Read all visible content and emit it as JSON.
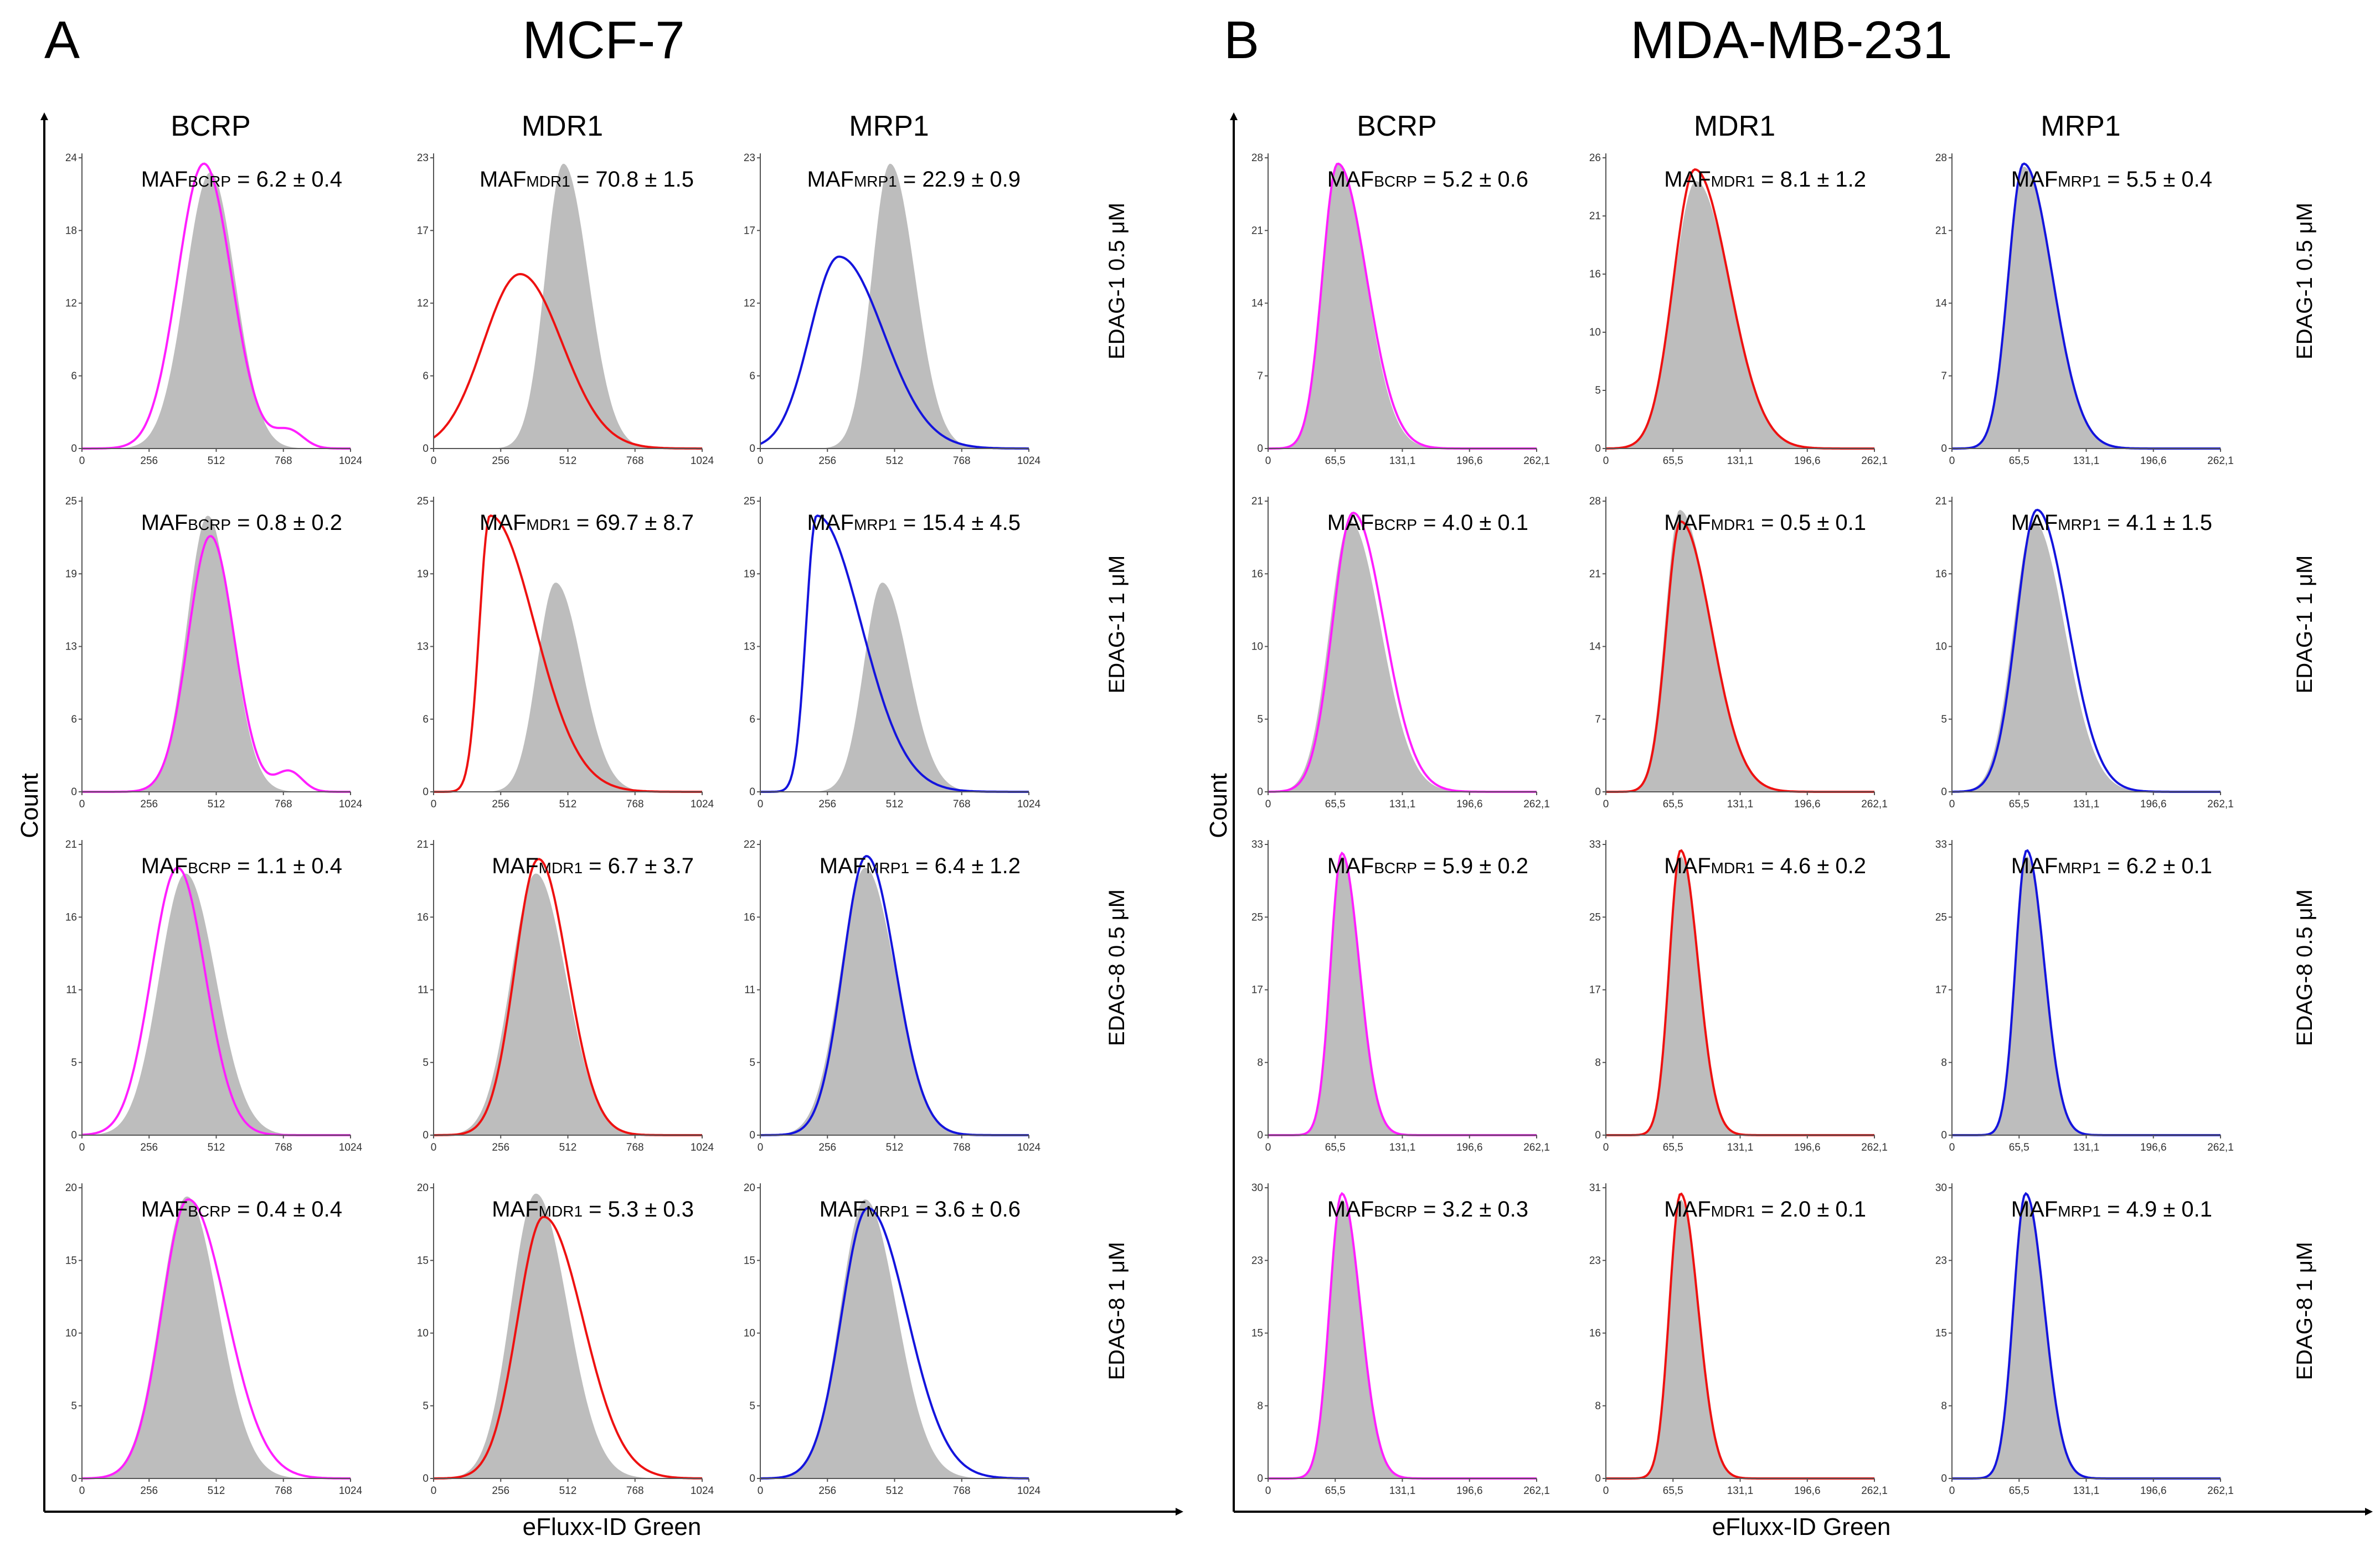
{
  "figure": {
    "series_colors": {
      "BCRP": "#ff1fff",
      "MDR1": "#ee1111",
      "MRP1": "#1414dd"
    },
    "fill_color": "#bdbdbd",
    "axis_color": "#000000",
    "count_label": "Count",
    "x_label": "eFluxx-ID Green",
    "maf_prefix": "MAF"
  },
  "chart_data": [
    {
      "type": "area",
      "panel": "A",
      "title": "MCF-7",
      "xlabel": "eFluxx-ID Green",
      "ylabel": "Count",
      "columns": [
        "BCRP",
        "MDR1",
        "MRP1"
      ],
      "rows": [
        "EDAG-1 0.5 μM",
        "EDAG-1 1 μM",
        "EDAG-8 0.5 μM",
        "EDAG-8 1 μM"
      ],
      "xlim": [
        0,
        1024
      ],
      "xticks": [
        "0",
        "256",
        "512",
        "768",
        "1024"
      ],
      "plots": [
        [
          {
            "ymax": 24,
            "yticks": [
              "0",
              "6",
              "12",
              "18",
              "24"
            ],
            "maf": "6.2 ± 0.4",
            "gray": {
              "peak": 490,
              "height": 0.95,
              "wl": 95,
              "wr": 95
            },
            "line": {
              "peak": 465,
              "height": 0.98,
              "wl": 100,
              "wr": 105,
              "tail": {
                "x": 790,
                "h": 0.06,
                "w": 55
              }
            }
          },
          {
            "ymax": 23,
            "yticks": [
              "0",
              "6",
              "12",
              "17",
              "23"
            ],
            "maf": "70.8 ± 1.5",
            "gray": {
              "peak": 495,
              "height": 0.98,
              "wl": 70,
              "wr": 95
            },
            "line": {
              "peak": 330,
              "height": 0.6,
              "wl": 140,
              "wr": 160
            }
          },
          {
            "ymax": 23,
            "yticks": [
              "0",
              "6",
              "12",
              "17",
              "23"
            ],
            "maf": "22.9 ± 0.9",
            "gray": {
              "peak": 495,
              "height": 0.98,
              "wl": 70,
              "wr": 95
            },
            "line": {
              "peak": 300,
              "height": 0.66,
              "wl": 110,
              "wr": 170
            }
          }
        ],
        [
          {
            "ymax": 25,
            "yticks": [
              "0",
              "6",
              "13",
              "19",
              "25"
            ],
            "maf": "0.8 ± 0.2",
            "gray": {
              "peak": 480,
              "height": 0.95,
              "wl": 80,
              "wr": 90
            },
            "line": {
              "peak": 490,
              "height": 0.88,
              "wl": 85,
              "wr": 90,
              "tail": {
                "x": 790,
                "h": 0.07,
                "w": 50
              }
            }
          },
          {
            "ymax": 25,
            "yticks": [
              "0",
              "6",
              "13",
              "19",
              "25"
            ],
            "maf": "69.7 ± 8.7",
            "gray": {
              "peak": 465,
              "height": 0.72,
              "wl": 70,
              "wr": 100
            },
            "line": {
              "peak": 215,
              "height": 0.95,
              "wl": 40,
              "wr": 170
            }
          },
          {
            "ymax": 25,
            "yticks": [
              "0",
              "6",
              "13",
              "19",
              "25"
            ],
            "maf": "15.4 ± 4.5",
            "gray": {
              "peak": 465,
              "height": 0.72,
              "wl": 70,
              "wr": 100
            },
            "line": {
              "peak": 215,
              "height": 0.95,
              "wl": 40,
              "wr": 170
            }
          }
        ],
        [
          {
            "ymax": 21,
            "yticks": [
              "0",
              "5",
              "11",
              "16",
              "21"
            ],
            "maf": "1.1 ± 0.4",
            "gray": {
              "peak": 395,
              "height": 0.9,
              "wl": 100,
              "wr": 115
            },
            "line": {
              "peak": 365,
              "height": 0.92,
              "wl": 100,
              "wr": 105
            }
          },
          {
            "ymax": 21,
            "yticks": [
              "0",
              "5",
              "11",
              "16",
              "21"
            ],
            "maf": "6.7 ± 3.7",
            "gray": {
              "peak": 390,
              "height": 0.9,
              "wl": 95,
              "wr": 115
            },
            "line": {
              "peak": 400,
              "height": 0.95,
              "wl": 90,
              "wr": 110
            }
          },
          {
            "ymax": 22,
            "yticks": [
              "0",
              "5",
              "11",
              "16",
              "22"
            ],
            "maf": "6.4 ± 1.2",
            "gray": {
              "peak": 400,
              "height": 0.92,
              "wl": 95,
              "wr": 115
            },
            "line": {
              "peak": 405,
              "height": 0.96,
              "wl": 90,
              "wr": 110
            }
          }
        ],
        [
          {
            "ymax": 20,
            "yticks": [
              "0",
              "5",
              "10",
              "15",
              "20"
            ],
            "maf": "0.4 ± 0.4",
            "gray": {
              "peak": 400,
              "height": 0.97,
              "wl": 100,
              "wr": 120
            },
            "line": {
              "peak": 405,
              "height": 0.96,
              "wl": 100,
              "wr": 145
            }
          },
          {
            "ymax": 20,
            "yticks": [
              "0",
              "5",
              "10",
              "15",
              "20"
            ],
            "maf": "5.3 ± 0.3",
            "gray": {
              "peak": 390,
              "height": 0.98,
              "wl": 95,
              "wr": 120
            },
            "line": {
              "peak": 420,
              "height": 0.9,
              "wl": 100,
              "wr": 150
            }
          },
          {
            "ymax": 20,
            "yticks": [
              "0",
              "5",
              "10",
              "15",
              "20"
            ],
            "maf": "3.6 ± 0.6",
            "gray": {
              "peak": 400,
              "height": 0.96,
              "wl": 95,
              "wr": 120
            },
            "line": {
              "peak": 410,
              "height": 0.93,
              "wl": 100,
              "wr": 150
            }
          }
        ]
      ]
    },
    {
      "type": "area",
      "panel": "B",
      "title": "MDA-MB-231",
      "xlabel": "eFluxx-ID Green",
      "ylabel": "Count",
      "columns": [
        "BCRP",
        "MDR1",
        "MRP1"
      ],
      "rows": [
        "EDAG-1 0.5 μM",
        "EDAG-1 1 μM",
        "EDAG-8 0.5 μM",
        "EDAG-8 1 μM"
      ],
      "xlim": [
        0,
        262.1
      ],
      "xticks": [
        "0",
        "65,5",
        "131,1",
        "196,6",
        "262,1"
      ],
      "plots": [
        [
          {
            "ymax": 28,
            "yticks": [
              "0",
              "7",
              "14",
              "21",
              "28"
            ],
            "maf": "5.2 ± 0.6",
            "gray": {
              "peak": 68,
              "height": 0.98,
              "wl": 15,
              "wr": 27
            },
            "line": {
              "peak": 68,
              "height": 0.98,
              "wl": 15,
              "wr": 28
            }
          },
          {
            "ymax": 26,
            "yticks": [
              "0",
              "5",
              "10",
              "16",
              "21",
              "26"
            ],
            "maf": "8.1 ± 1.2",
            "gray": {
              "peak": 88,
              "height": 0.92,
              "wl": 22,
              "wr": 33
            },
            "line": {
              "peak": 87,
              "height": 0.96,
              "wl": 21,
              "wr": 33
            }
          },
          {
            "ymax": 28,
            "yticks": [
              "0",
              "7",
              "14",
              "21",
              "28"
            ],
            "maf": "5.5 ± 0.4",
            "gray": {
              "peak": 70,
              "height": 0.97,
              "wl": 15,
              "wr": 28
            },
            "line": {
              "peak": 70,
              "height": 0.98,
              "wl": 15,
              "wr": 28
            }
          }
        ],
        [
          {
            "ymax": 21,
            "yticks": [
              "0",
              "5",
              "10",
              "16",
              "21"
            ],
            "maf": "4.0 ± 0.1",
            "gray": {
              "peak": 80,
              "height": 0.93,
              "wl": 20,
              "wr": 30
            },
            "line": {
              "peak": 83,
              "height": 0.96,
              "wl": 20,
              "wr": 30
            }
          },
          {
            "ymax": 28,
            "yticks": [
              "0",
              "7",
              "14",
              "21",
              "28"
            ],
            "maf": "0.5 ± 0.1",
            "gray": {
              "peak": 72,
              "height": 0.97,
              "wl": 14,
              "wr": 30
            },
            "line": {
              "peak": 73,
              "height": 0.93,
              "wl": 14,
              "wr": 30
            }
          },
          {
            "ymax": 21,
            "yticks": [
              "0",
              "5",
              "10",
              "16",
              "21"
            ],
            "maf": "4.1 ± 1.5",
            "gray": {
              "peak": 80,
              "height": 0.93,
              "wl": 20,
              "wr": 30
            },
            "line": {
              "peak": 83,
              "height": 0.97,
              "wl": 20,
              "wr": 30
            }
          }
        ],
        [
          {
            "ymax": 33,
            "yticks": [
              "0",
              "8",
              "17",
              "25",
              "33"
            ],
            "maf": "5.9 ± 0.2",
            "gray": {
              "peak": 72,
              "height": 0.96,
              "wl": 11,
              "wr": 17
            },
            "line": {
              "peak": 72,
              "height": 0.97,
              "wl": 11,
              "wr": 17
            }
          },
          {
            "ymax": 33,
            "yticks": [
              "0",
              "8",
              "17",
              "25",
              "33"
            ],
            "maf": "4.6 ± 0.2",
            "gray": {
              "peak": 73,
              "height": 0.96,
              "wl": 11,
              "wr": 17
            },
            "line": {
              "peak": 73,
              "height": 0.98,
              "wl": 11,
              "wr": 17
            }
          },
          {
            "ymax": 33,
            "yticks": [
              "0",
              "8",
              "17",
              "25",
              "33"
            ],
            "maf": "6.2 ± 0.1",
            "gray": {
              "peak": 73,
              "height": 0.96,
              "wl": 11,
              "wr": 17
            },
            "line": {
              "peak": 73,
              "height": 0.98,
              "wl": 11,
              "wr": 17
            }
          }
        ],
        [
          {
            "ymax": 30,
            "yticks": [
              "0",
              "8",
              "15",
              "23",
              "30"
            ],
            "maf": "3.2 ± 0.3",
            "gray": {
              "peak": 72,
              "height": 0.96,
              "wl": 12,
              "wr": 18
            },
            "line": {
              "peak": 72,
              "height": 0.98,
              "wl": 12,
              "wr": 18
            }
          },
          {
            "ymax": 31,
            "yticks": [
              "0",
              "8",
              "16",
              "23",
              "31"
            ],
            "maf": "2.0 ± 0.1",
            "gray": {
              "peak": 73,
              "height": 0.96,
              "wl": 11,
              "wr": 17
            },
            "line": {
              "peak": 73,
              "height": 0.98,
              "wl": 11,
              "wr": 17
            }
          },
          {
            "ymax": 30,
            "yticks": [
              "0",
              "8",
              "15",
              "23",
              "30"
            ],
            "maf": "4.9 ± 0.1",
            "gray": {
              "peak": 72,
              "height": 0.96,
              "wl": 12,
              "wr": 18
            },
            "line": {
              "peak": 72,
              "height": 0.98,
              "wl": 12,
              "wr": 18
            }
          }
        ]
      ]
    }
  ]
}
